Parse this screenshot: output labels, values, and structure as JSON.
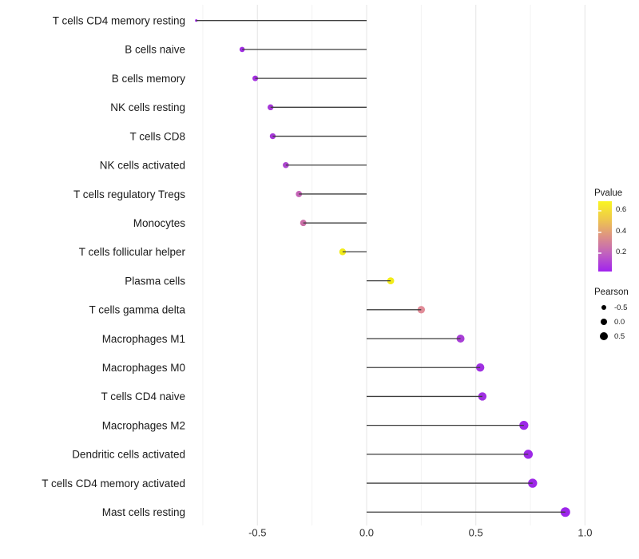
{
  "chart_data": {
    "type": "scatter",
    "subtype": "lollipop",
    "title": "",
    "xlabel": "",
    "ylabel": "",
    "xlim": [
      -0.85,
      1.1
    ],
    "grid": "vertical-only",
    "legend_position": "right",
    "x_axis": {
      "ticks": [
        -0.5,
        0.0,
        0.5,
        1.0
      ],
      "tick_labels": [
        "-0.5",
        "0.0",
        "0.5",
        "1.0"
      ],
      "minor_gridlines": [
        -0.75,
        -0.25,
        0.25,
        0.75
      ]
    },
    "points": [
      {
        "label": "T cells CD4 memory resting",
        "pearson": -0.78,
        "color": "#A128E9",
        "radius": 1.6
      },
      {
        "label": "B cells naive",
        "pearson": -0.57,
        "color": "#A02CE2",
        "radius": 3.3
      },
      {
        "label": "B cells memory",
        "pearson": -0.51,
        "color": "#A430DF",
        "radius": 3.5
      },
      {
        "label": "NK cells resting",
        "pearson": -0.44,
        "color": "#A637D8",
        "radius": 3.7
      },
      {
        "label": "T cells CD8",
        "pearson": -0.43,
        "color": "#A637D8",
        "radius": 3.7
      },
      {
        "label": "NK cells activated",
        "pearson": -0.37,
        "color": "#AC45CE",
        "radius": 3.8
      },
      {
        "label": "T cells regulatory  Tregs",
        "pearson": -0.31,
        "color": "#C463B6",
        "radius": 3.9
      },
      {
        "label": "Monocytes",
        "pearson": -0.29,
        "color": "#CB6FA8",
        "radius": 4.0
      },
      {
        "label": "T cells follicular helper",
        "pearson": -0.11,
        "color": "#F2EC19",
        "radius": 4.2
      },
      {
        "label": "Plasma cells",
        "pearson": 0.11,
        "color": "#F2EC19",
        "radius": 4.4
      },
      {
        "label": "T cells gamma delta",
        "pearson": 0.25,
        "color": "#E18C98",
        "radius": 4.7
      },
      {
        "label": "Macrophages M1",
        "pearson": 0.43,
        "color": "#A83FD6",
        "radius": 5.0
      },
      {
        "label": "Macrophages M0",
        "pearson": 0.52,
        "color": "#A030E2",
        "radius": 5.2
      },
      {
        "label": "T cells CD4 naive",
        "pearson": 0.53,
        "color": "#A030E2",
        "radius": 5.2
      },
      {
        "label": "Macrophages M2",
        "pearson": 0.72,
        "color": "#9D28E7",
        "radius": 5.6
      },
      {
        "label": "Dendritic cells activated",
        "pearson": 0.74,
        "color": "#9D28E7",
        "radius": 5.7
      },
      {
        "label": "T cells CD4 memory activated",
        "pearson": 0.76,
        "color": "#9D28E7",
        "radius": 5.7
      },
      {
        "label": "Mast cells resting",
        "pearson": 0.91,
        "color": "#9C25EA",
        "radius": 6.0
      }
    ],
    "legend": {
      "pvalue": {
        "title": "Pvalue",
        "ticks": [
          "0.6",
          "0.4",
          "0.2"
        ],
        "gradient_bottom_to_top": [
          "#A123EE",
          "#C060C0",
          "#DD9185",
          "#EFC94B",
          "#F9F521"
        ]
      },
      "pearson": {
        "title": "Pearson",
        "items": [
          {
            "label": "-0.5",
            "radius": 3.2
          },
          {
            "label": "0.0",
            "radius": 4.4
          },
          {
            "label": "0.5",
            "radius": 5.4
          }
        ]
      }
    },
    "style_colors": {
      "segment": "#3d3d3d",
      "major_gridline": "#e9e9e9",
      "minor_gridline": "#f3f3f3",
      "axis_text": "#303030"
    }
  }
}
